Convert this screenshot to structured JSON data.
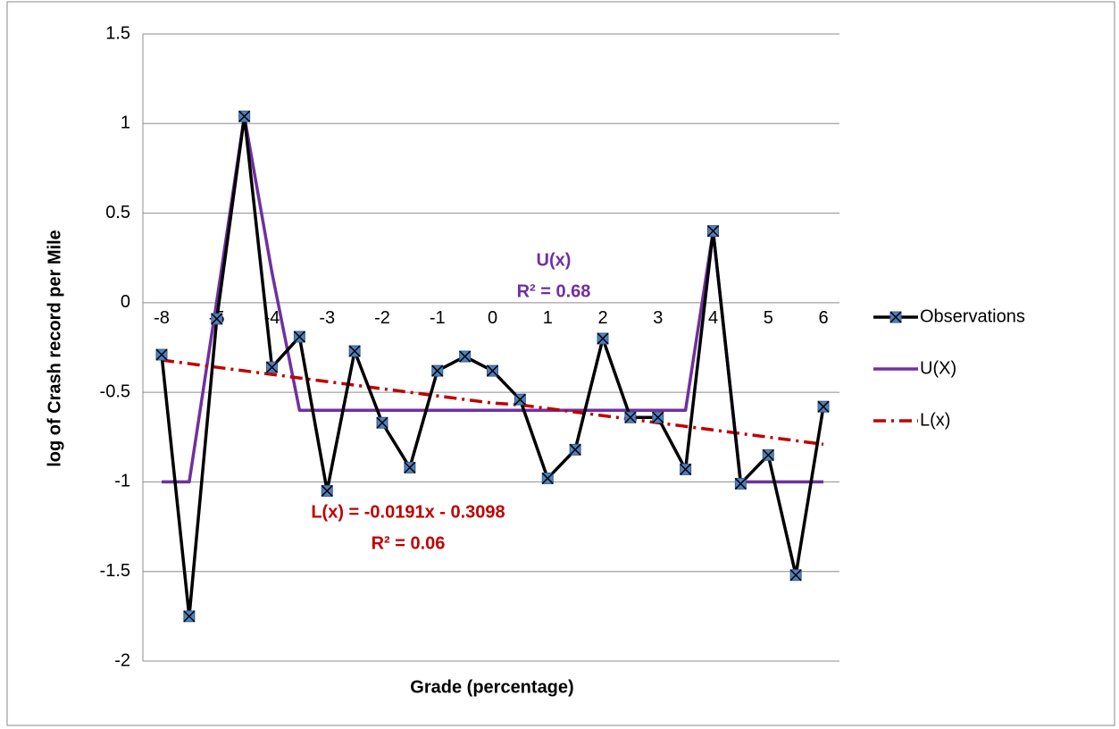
{
  "chart_data": {
    "type": "line",
    "x_label": "Grade (percentage)",
    "y_label": "log of Crash record per Mile",
    "categories": [
      "-8",
      null,
      "-5",
      null,
      "-4",
      null,
      "-3",
      null,
      "-2",
      null,
      "-1",
      null,
      "0",
      null,
      "1",
      null,
      "2",
      null,
      "3",
      null,
      "4",
      null,
      "5",
      null,
      "6"
    ],
    "series": [
      {
        "name": "Observations",
        "color": "#000000",
        "marker_color": "#4f81bd",
        "marker": true,
        "values": [
          -0.29,
          -1.75,
          -0.09,
          1.04,
          -0.36,
          -0.19,
          -1.05,
          -0.27,
          -0.67,
          -0.92,
          -0.38,
          -0.3,
          -0.38,
          -0.54,
          -0.98,
          -0.82,
          -0.2,
          -0.64,
          -0.64,
          -0.93,
          0.4,
          -1.01,
          -0.85,
          -1.52,
          -0.58
        ]
      },
      {
        "name": "U(X)",
        "color": "#7030a0",
        "marker": false,
        "values": [
          -1,
          -1,
          0.01,
          1.04,
          0.17,
          -0.6,
          -0.6,
          -0.6,
          -0.6,
          -0.6,
          -0.6,
          -0.6,
          -0.6,
          -0.6,
          -0.6,
          -0.6,
          -0.6,
          -0.6,
          -0.6,
          -0.6,
          0.4,
          -1,
          -1,
          -1,
          -1
        ]
      },
      {
        "name": "L(x)",
        "color": "#c00000",
        "marker": false,
        "dash": "dash-dot",
        "values": [
          -0.32,
          -0.34,
          -0.36,
          -0.38,
          -0.4,
          -0.42,
          -0.44,
          -0.46,
          -0.48,
          -0.5,
          -0.52,
          -0.54,
          -0.56,
          -0.57,
          -0.59,
          -0.61,
          -0.63,
          -0.65,
          -0.67,
          -0.69,
          -0.71,
          -0.73,
          -0.75,
          -0.77,
          -0.79
        ]
      }
    ],
    "annotations": [
      {
        "lines": [
          "U(x)",
          "R² = 0.68"
        ],
        "color": "#7030a0"
      },
      {
        "lines": [
          "L(x) = -0.0191x - 0.3098",
          "R² = 0.06"
        ],
        "color": "#c00000"
      }
    ],
    "ylim": [
      -2,
      1.5
    ],
    "yticks": [
      1.5,
      1,
      0.5,
      0,
      -0.5,
      -1,
      -1.5,
      -2
    ],
    "grid": true,
    "legend": "right"
  }
}
